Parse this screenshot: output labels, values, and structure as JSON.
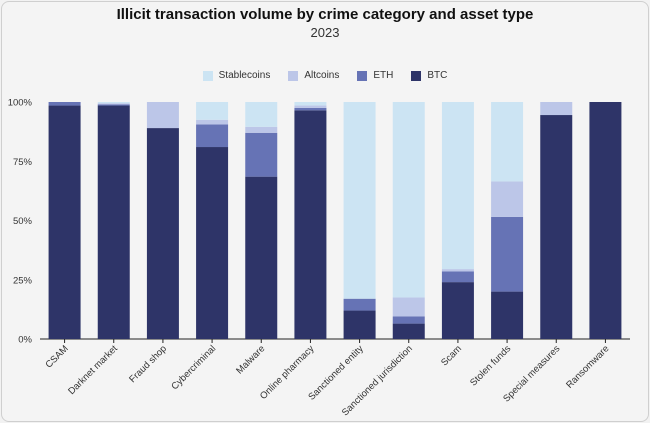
{
  "chart_data": {
    "type": "bar",
    "stacked": true,
    "title": "Illicit transaction volume by crime category and asset type",
    "subtitle": "2023",
    "categories": [
      "CSAM",
      "Darknet market",
      "Fraud shop",
      "Cybercriminal",
      "Malware",
      "Online pharmacy",
      "Sanctioned entity",
      "Sanctioned jurisdiction",
      "Scam",
      "Stolen funds",
      "Special measures",
      "Ransomware"
    ],
    "series": [
      {
        "name": "BTC",
        "color": "#2e3468",
        "values": [
          98.5,
          98.5,
          89,
          81,
          68.5,
          96.5,
          12,
          6.5,
          24,
          20,
          94.5,
          100
        ]
      },
      {
        "name": "ETH",
        "color": "#6673b5",
        "values": [
          1.5,
          0.5,
          0,
          9.5,
          18.5,
          1,
          5,
          3,
          4.5,
          31.5,
          0,
          0
        ]
      },
      {
        "name": "Altcoins",
        "color": "#bcc6e8",
        "values": [
          0,
          0.5,
          11,
          2,
          2.5,
          1,
          0,
          8,
          1,
          15,
          5.5,
          0
        ]
      },
      {
        "name": "Stablecoins",
        "color": "#cce4f3",
        "values": [
          0,
          0.5,
          0,
          7.5,
          10.5,
          1.5,
          83,
          82.5,
          70.5,
          33.5,
          0,
          0
        ]
      }
    ],
    "legend_order": [
      "Stablecoins",
      "Altcoins",
      "ETH",
      "BTC"
    ],
    "legend_position": "top-center",
    "ylim": [
      0,
      100
    ],
    "yticks": [
      0,
      25,
      50,
      75,
      100
    ],
    "ytick_labels": [
      "0%",
      "25%",
      "50%",
      "75%",
      "100%"
    ],
    "grid": false
  }
}
